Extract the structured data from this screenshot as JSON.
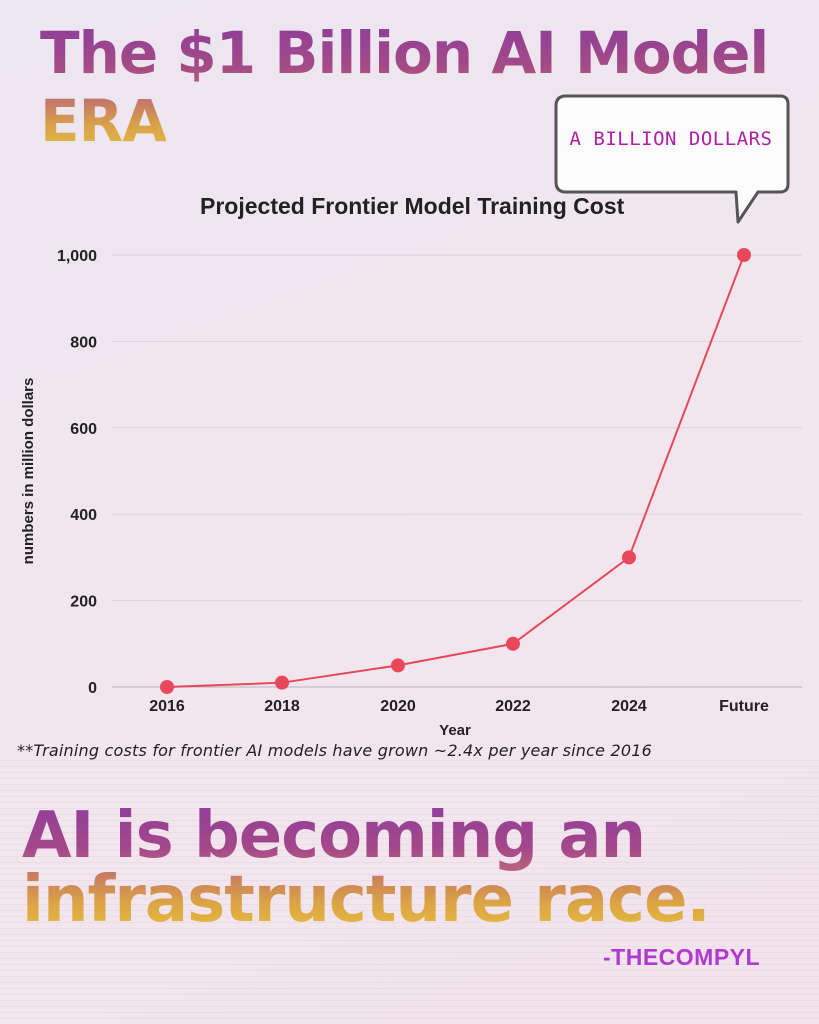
{
  "header": {
    "title_line1": "The $1 Billion AI Model",
    "title_line2": "ERA"
  },
  "callout": {
    "text": "A BILLION DOLLARS"
  },
  "chart_data": {
    "type": "line",
    "title": "Projected Frontier Model Training Cost",
    "xlabel": "Year",
    "ylabel": "numbers in million dollars",
    "categories": [
      "2016",
      "2018",
      "2020",
      "2022",
      "2024",
      "Future"
    ],
    "series": [
      {
        "values": [
          0,
          10,
          50,
          100,
          300,
          1000
        ],
        "color": "#e8485a"
      }
    ],
    "ylim": [
      0,
      1000
    ],
    "yticks": [
      0,
      200,
      400,
      600,
      800,
      1000
    ],
    "ytick_labels": [
      "0",
      "200",
      "400",
      "600",
      "800",
      "1,000"
    ],
    "grid": "horizontal",
    "legend": "none"
  },
  "footnote": "**Training costs for frontier AI models have grown ~2.4x per year since 2016",
  "tagline": {
    "line1": "AI is becoming an",
    "line2": "infrastructure race."
  },
  "signature": "-THECOMPYL",
  "colors": {
    "accent_purple": "#8b3d9c",
    "accent_gold": "#e6c041",
    "line": "#e8485a",
    "signature": "#b03ad0"
  }
}
